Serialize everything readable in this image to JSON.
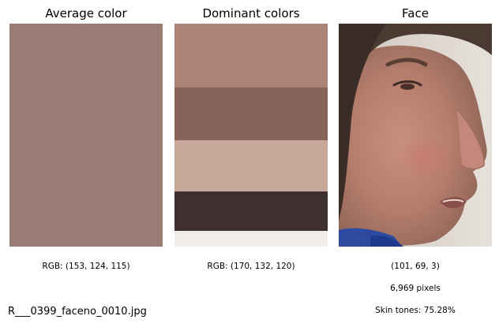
{
  "panels": {
    "average": {
      "title": "Average color",
      "color": "#997c73",
      "caption": "RGB: (153, 124, 115)"
    },
    "dominant": {
      "title": "Dominant colors",
      "colors": [
        "#a98477",
        "#876359",
        "#c8a89b",
        "#3e3030",
        "#f0ece9"
      ],
      "caption": "RGB: (170, 132, 120)"
    },
    "face": {
      "title": "Face",
      "rgb_caption": "(101, 69, 3)",
      "pixels_caption": "6,969 pixels",
      "skin_caption": "Skin tones: 75.28%"
    }
  },
  "filename": "R___0399_faceno_0010.jpg"
}
